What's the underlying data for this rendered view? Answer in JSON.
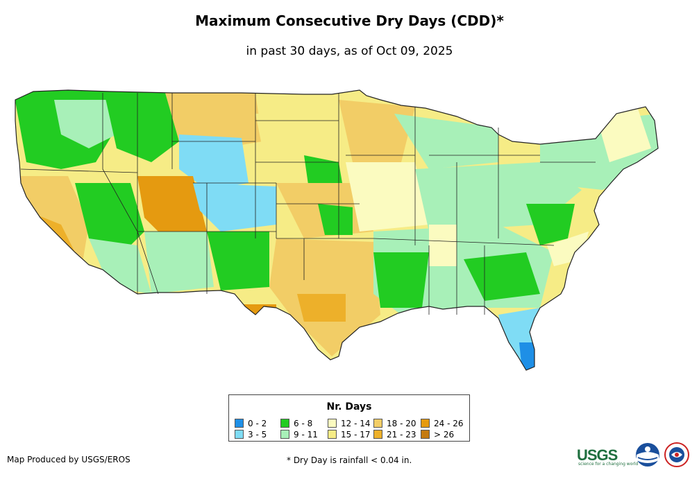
{
  "title": "Maximum Consecutive Dry Days (CDD)*",
  "subtitle": "in past 30 days, as of Oct 09, 2025",
  "legend": {
    "title": "Nr. Days",
    "items": [
      {
        "label": "0 - 2",
        "color": "#1e8fe6"
      },
      {
        "label": "3 - 5",
        "color": "#7fdcf5"
      },
      {
        "label": "6 - 8",
        "color": "#22cc22"
      },
      {
        "label": "9 - 11",
        "color": "#a8f0b8"
      },
      {
        "label": "12 - 14",
        "color": "#fbfbc0"
      },
      {
        "label": "15 - 17",
        "color": "#f6ec86"
      },
      {
        "label": "18 - 20",
        "color": "#f2cd66"
      },
      {
        "label": "21 - 23",
        "color": "#edb02a"
      },
      {
        "label": "24 - 26",
        "color": "#e59a10"
      },
      {
        "label": "> 26",
        "color": "#c47a10"
      }
    ]
  },
  "footer": {
    "producer": "Map Produced by USGS/EROS",
    "note": "* Dry Day is rainfall < 0.04 in."
  },
  "logos": {
    "usgs": "USGS",
    "usgs_tagline": "science for a changing world"
  }
}
